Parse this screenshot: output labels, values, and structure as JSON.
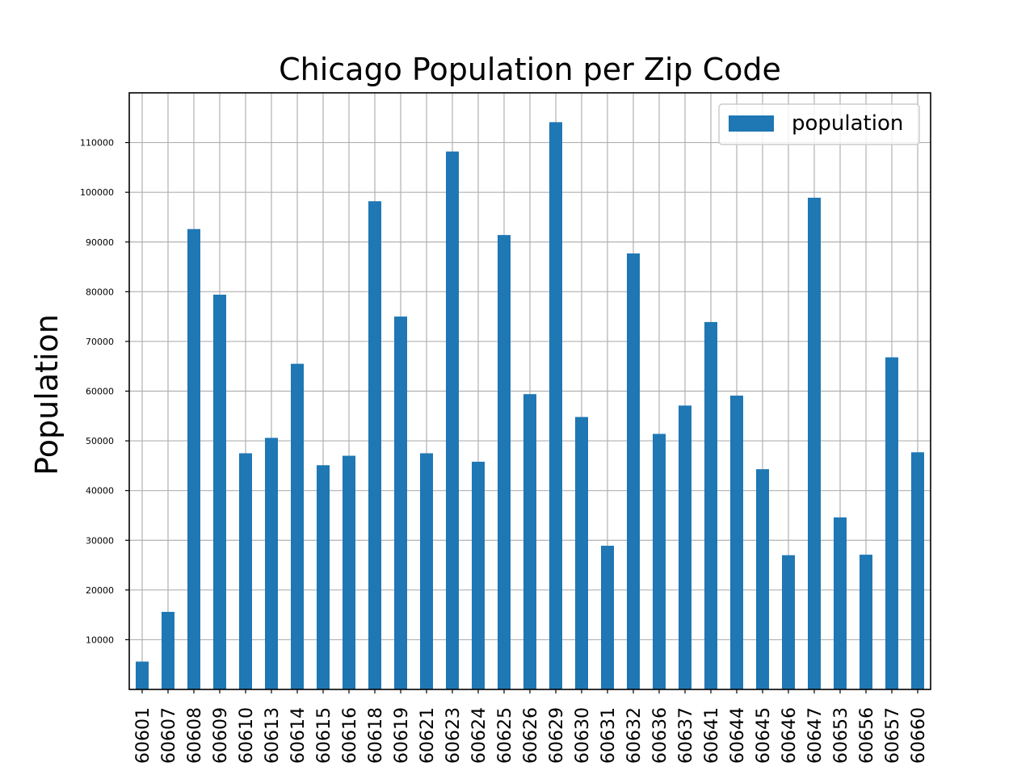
{
  "chart_data": {
    "type": "bar",
    "title": "Chicago Population per Zip Code",
    "xlabel": "",
    "ylabel": "Population",
    "ylim": [
      0,
      120000
    ],
    "yticks": [
      10000,
      20000,
      30000,
      40000,
      50000,
      60000,
      70000,
      80000,
      90000,
      100000,
      110000
    ],
    "grid": true,
    "legend_position": "top-right",
    "bar_color": "#1f77b4",
    "categories": [
      "60601",
      "60607",
      "60608",
      "60609",
      "60610",
      "60613",
      "60614",
      "60615",
      "60616",
      "60618",
      "60619",
      "60621",
      "60623",
      "60624",
      "60625",
      "60626",
      "60629",
      "60630",
      "60631",
      "60632",
      "60636",
      "60637",
      "60641",
      "60644",
      "60645",
      "60646",
      "60647",
      "60653",
      "60656",
      "60657",
      "60660"
    ],
    "series": [
      {
        "name": "population",
        "values": [
          5600,
          15600,
          92600,
          79400,
          47500,
          50600,
          65500,
          45100,
          47000,
          98200,
          75000,
          47500,
          108200,
          45800,
          91400,
          59400,
          114100,
          54800,
          28900,
          87700,
          51400,
          57100,
          73900,
          59100,
          44300,
          27000,
          98900,
          34600,
          27100,
          66800,
          47700
        ]
      }
    ]
  }
}
